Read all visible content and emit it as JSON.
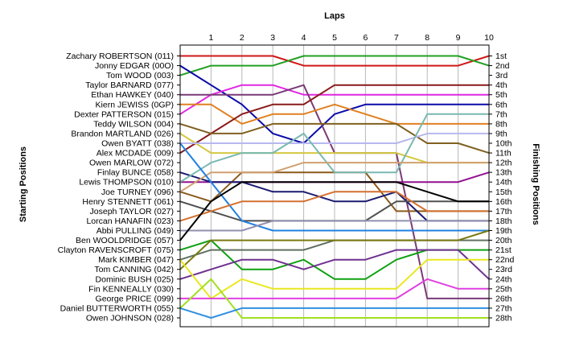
{
  "chart_data": {
    "type": "line",
    "title": "Laps",
    "ylabel_left": "Starting Positions",
    "ylabel_right": "Finishing Positions",
    "x": [
      0,
      1,
      2,
      3,
      4,
      5,
      6,
      7,
      8,
      9,
      10
    ],
    "x_tick_labels": [
      "1",
      "2",
      "3",
      "4",
      "5",
      "6",
      "7",
      "8",
      "9",
      "10"
    ],
    "y_reversed": true,
    "y_range": [
      1,
      28
    ],
    "finishing_labels": [
      "1st",
      "2nd",
      "3rd",
      "4th",
      "5th",
      "6th",
      "7th",
      "8th",
      "9th",
      "10th",
      "11th",
      "12th",
      "13th",
      "14th",
      "15th",
      "16th",
      "17th",
      "18th",
      "19th",
      "20th",
      "21st",
      "22nd",
      "23rd",
      "24th",
      "25th",
      "26th",
      "27th",
      "28th"
    ],
    "grid": "vertical",
    "series": [
      {
        "name": "Zachary ROBERTSON (011)",
        "color": "#d01818",
        "positions": [
          1,
          1,
          1,
          1,
          2,
          2,
          2,
          2,
          2,
          2,
          1
        ]
      },
      {
        "name": "Jonny EDGAR (00O)",
        "color": "#22a022",
        "positions": [
          3,
          2,
          2,
          2,
          1,
          1,
          1,
          1,
          1,
          1,
          2
        ]
      },
      {
        "name": "Tom WOOD (003)",
        "color": "#0a0aa8",
        "positions": [
          2,
          4,
          6,
          9,
          10,
          7,
          6,
          6,
          6,
          6,
          6
        ]
      },
      {
        "name": "Taylor BARNARD (077)",
        "color": "#e028e0",
        "positions": [
          7,
          5,
          4,
          4,
          5,
          5,
          5,
          5,
          5,
          5,
          5
        ]
      },
      {
        "name": "Ethan HAWKEY (040)",
        "color": "#7a3a78",
        "positions": [
          5,
          5,
          5,
          5,
          4,
          11,
          11,
          11,
          26,
          26,
          26
        ]
      },
      {
        "name": "Kiern JEWISS (0GP)",
        "color": "#e08020",
        "positions": [
          6,
          6,
          8,
          7,
          7,
          6,
          7,
          8,
          8,
          8,
          8
        ]
      },
      {
        "name": "Dexter PATTERSON (015)",
        "color": "#8a1a1a",
        "positions": [
          11,
          9,
          7,
          6,
          6,
          4,
          4,
          4,
          4,
          4,
          4
        ]
      },
      {
        "name": "Teddy WILSON (004)",
        "color": "#806020",
        "positions": [
          8,
          9,
          9,
          8,
          8,
          8,
          8,
          8,
          10,
          10,
          11
        ]
      },
      {
        "name": "Brandon MARTLAND (026)",
        "color": "#d4c840",
        "positions": [
          9,
          11,
          11,
          11,
          11,
          11,
          11,
          11,
          12,
          12,
          12
        ]
      },
      {
        "name": "Owen BYATT (038)",
        "color": "#b8b8f0",
        "positions": [
          10,
          10,
          10,
          10,
          10,
          10,
          10,
          10,
          9,
          9,
          9
        ]
      },
      {
        "name": "Alex MCDADE (009)",
        "color": "#901090",
        "positions": [
          14,
          14,
          14,
          14,
          14,
          14,
          14,
          14,
          14,
          14,
          13
        ]
      },
      {
        "name": "Owen MARLOW (072)",
        "color": "#8a5a1a",
        "positions": [
          15,
          16,
          13,
          13,
          13,
          13,
          13,
          17,
          17,
          17,
          17
        ]
      },
      {
        "name": "Finlay BUNCE (058)",
        "color": "#1a1a70",
        "positions": [
          13,
          14,
          14,
          15,
          15,
          16,
          16,
          15,
          18,
          18,
          18
        ]
      },
      {
        "name": "Lewis THOMPSON (010)",
        "color": "#78b8b0",
        "positions": [
          14,
          12,
          11,
          11,
          9,
          13,
          13,
          13,
          7,
          7,
          7
        ]
      },
      {
        "name": "Joe TURNEY (096)",
        "color": "#d0a070",
        "positions": [
          15,
          13,
          13,
          13,
          12,
          12,
          12,
          12,
          12,
          12,
          12
        ]
      },
      {
        "name": "Henry STENNETT (061)",
        "color": "#505050",
        "positions": [
          16,
          17,
          18,
          18,
          18,
          18,
          18,
          16,
          16,
          16,
          16
        ]
      },
      {
        "name": "Joseph TAYLOR (027)",
        "color": "#2080e0",
        "positions": [
          10,
          14,
          18,
          19,
          19,
          19,
          19,
          19,
          19,
          19,
          19
        ]
      },
      {
        "name": "Lorcan HANAFIN (023)",
        "color": "#d47030",
        "positions": [
          18,
          17,
          16,
          16,
          16,
          15,
          15,
          15,
          17,
          17,
          17
        ]
      },
      {
        "name": "Abbi PULLING (049)",
        "color": "#9090b0",
        "positions": [
          19,
          19,
          19,
          18,
          18,
          18,
          18,
          18,
          18,
          18,
          18
        ]
      },
      {
        "name": "Ben WOOLDRIDGE (057)",
        "color": "#000000",
        "positions": [
          20,
          16,
          14,
          14,
          14,
          14,
          14,
          14,
          15,
          16,
          16
        ]
      },
      {
        "name": "Clayton RAVENSCROFT (075)",
        "color": "#10a010",
        "positions": [
          21,
          20,
          23,
          23,
          22,
          24,
          24,
          22,
          21,
          21,
          21
        ]
      },
      {
        "name": "Mark KIMBER (047)",
        "color": "#607060",
        "positions": [
          22,
          21,
          21,
          21,
          21,
          20,
          20,
          20,
          20,
          20,
          20
        ]
      },
      {
        "name": "Tom CANNING (042)",
        "color": "#7a7a10",
        "positions": [
          23,
          20,
          20,
          20,
          20,
          20,
          20,
          20,
          20,
          20,
          19
        ]
      },
      {
        "name": "Dominic BUSH (025)",
        "color": "#703090",
        "positions": [
          24,
          23,
          22,
          22,
          23,
          22,
          22,
          21,
          21,
          21,
          24
        ]
      },
      {
        "name": "Fin KENNEALLY (030)",
        "color": "#e8e820",
        "positions": [
          22,
          26,
          24,
          25,
          25,
          25,
          25,
          25,
          22,
          22,
          22
        ]
      },
      {
        "name": "George PRICE (099)",
        "color": "#e040e0",
        "positions": [
          26,
          26,
          26,
          26,
          26,
          26,
          26,
          26,
          24,
          25,
          25
        ]
      },
      {
        "name": "Daniel BUTTERWORTH (055)",
        "color": "#a0e020",
        "positions": [
          27,
          24,
          28,
          28,
          28,
          28,
          28,
          28,
          28,
          28,
          28
        ]
      },
      {
        "name": "Owen JOHNSON (028)",
        "color": "#3090e0",
        "positions": [
          27,
          28,
          27,
          27,
          27,
          27,
          27,
          27,
          27,
          27,
          27
        ]
      }
    ]
  }
}
